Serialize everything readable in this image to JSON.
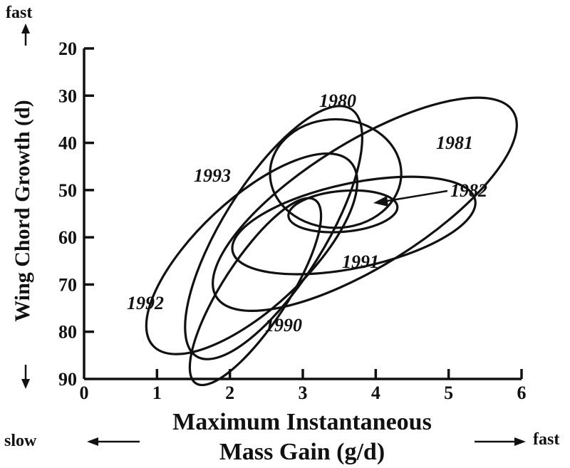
{
  "chart_data": {
    "type": "ellipse-plot",
    "xlabel_line1": "Maximum Instantaneous",
    "xlabel_line2": "Mass Gain (g/d)",
    "ylabel": "Wing Chord Growth (d)",
    "x_ticks": [
      0,
      1,
      2,
      3,
      4,
      5,
      6
    ],
    "y_ticks": [
      20,
      30,
      40,
      50,
      60,
      70,
      80,
      90
    ],
    "xlim": [
      0,
      6
    ],
    "ylim": [
      90,
      20
    ],
    "y_axis_inverted": true,
    "x_direction_labels": {
      "left": "slow",
      "right": "fast"
    },
    "y_direction_labels": {
      "top": "fast"
    },
    "series": [
      {
        "name": "1980",
        "center": [
          3.45,
          46.5
        ],
        "x_semi": 0.9,
        "y_semi": 11.5,
        "angle_deg": 0
      },
      {
        "name": "1981",
        "center": [
          3.85,
          53.0
        ],
        "x_semi": 2.4,
        "y_semi": 0.85,
        "angle_deg": -32
      },
      {
        "name": "1982",
        "center": [
          3.55,
          54.5
        ],
        "x_semi": 0.75,
        "y_semi": 0.28,
        "angle_deg": -5
      },
      {
        "name": "1991",
        "center": [
          3.7,
          57.5
        ],
        "x_semi": 1.7,
        "y_semi": 0.58,
        "angle_deg": -12
      },
      {
        "name": "1993",
        "center": [
          2.6,
          59.0
        ],
        "x_semi": 2.0,
        "y_semi": 0.7,
        "angle_deg": -58
      },
      {
        "name": "1992",
        "center": [
          2.3,
          63.5
        ],
        "x_semi": 1.85,
        "y_semi": 0.75,
        "angle_deg": -43
      },
      {
        "name": "1990",
        "center": [
          2.35,
          71.5
        ],
        "x_semi": 1.5,
        "y_semi": 0.45,
        "angle_deg": -57
      }
    ]
  }
}
